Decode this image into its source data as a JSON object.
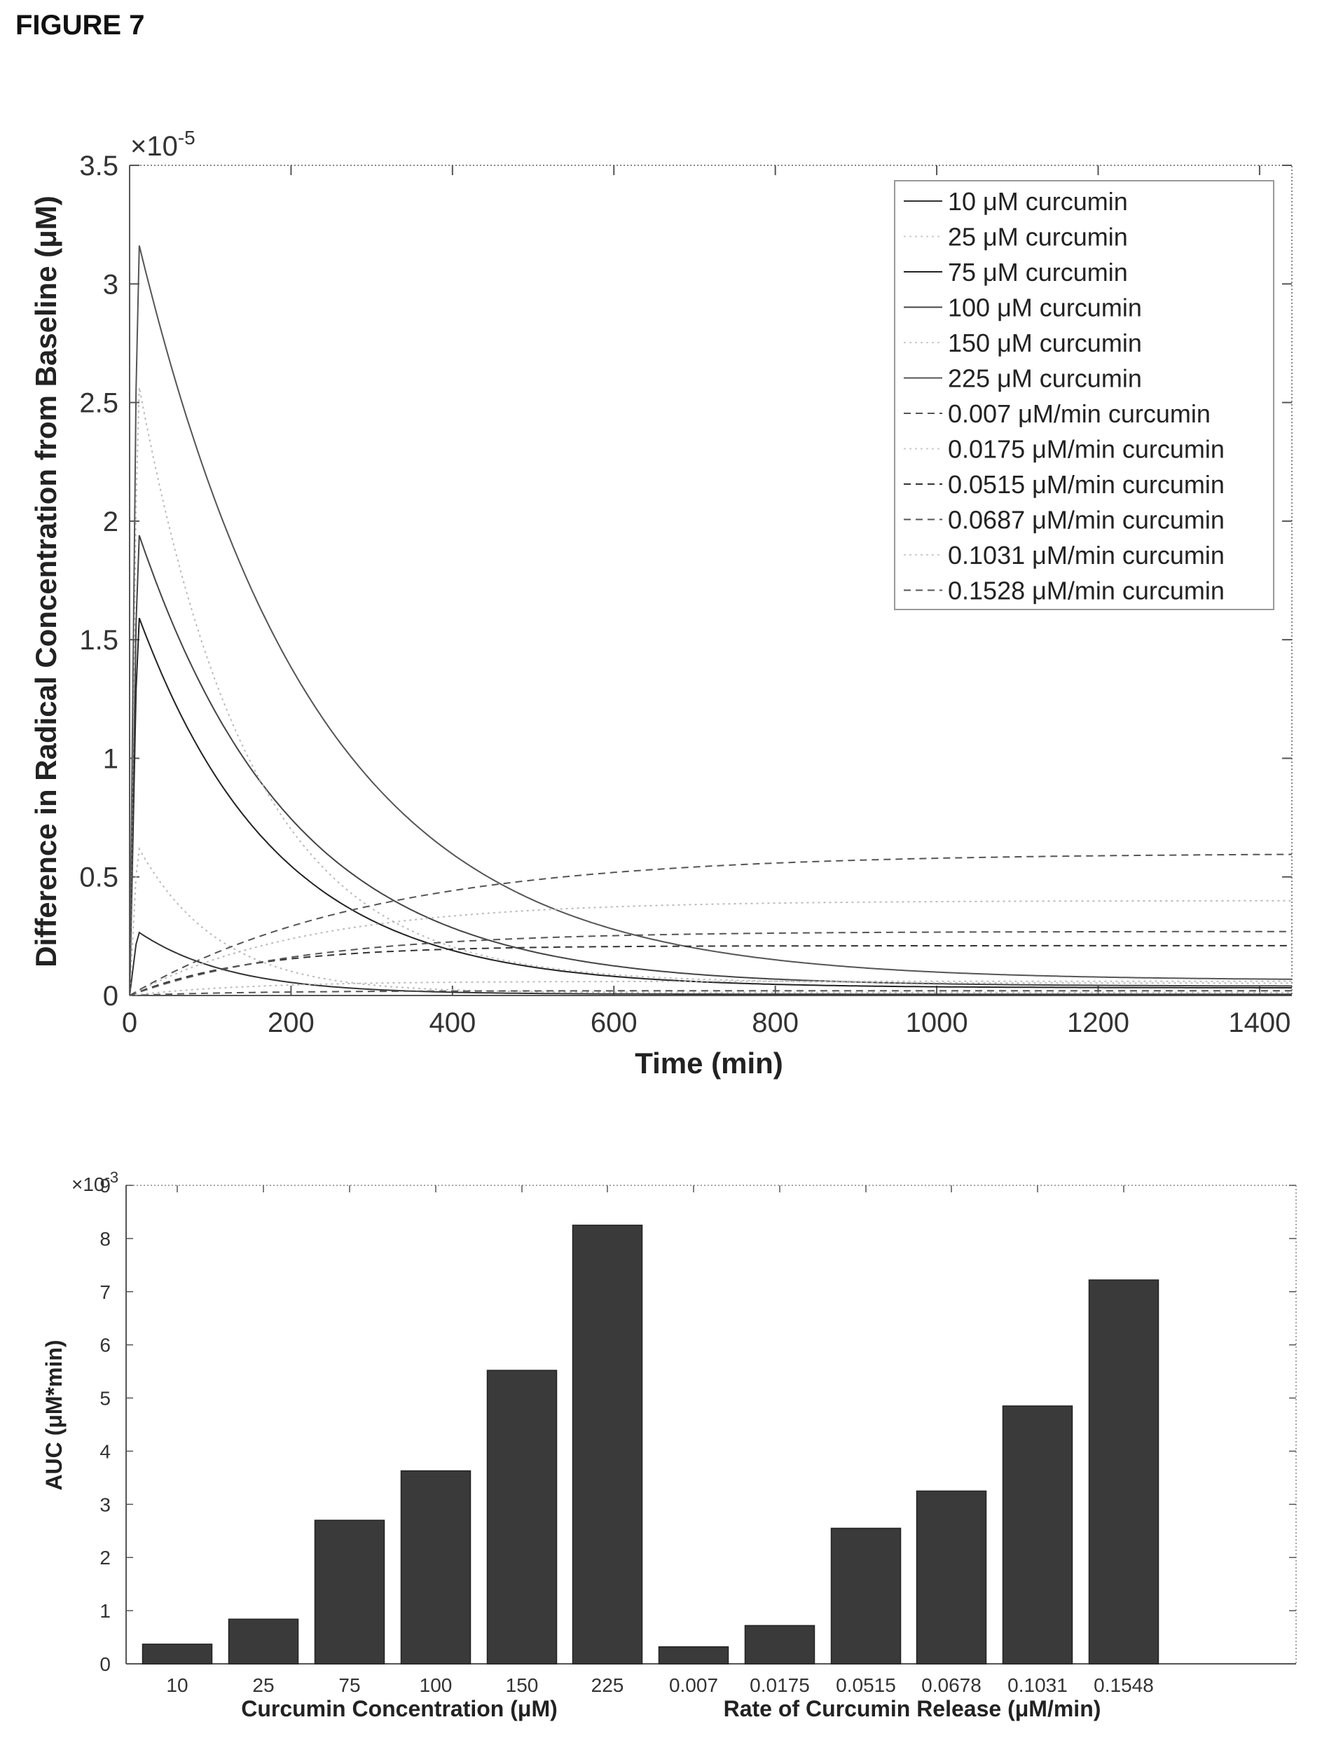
{
  "figure_title": "FIGURE 7",
  "chart_data": [
    {
      "type": "line",
      "xlabel": "Time (min)",
      "ylabel": "Difference in Radical Concentration from Baseline (μM)",
      "y_exponent": "×10",
      "y_exponent_power": "-5",
      "xlim": [
        0,
        1440
      ],
      "ylim": [
        0,
        3.5
      ],
      "x_ticks": [
        "0",
        "200",
        "400",
        "600",
        "800",
        "1000",
        "1200",
        "1400"
      ],
      "y_ticks": [
        "0",
        "0.5",
        "1",
        "1.5",
        "2",
        "2.5",
        "3",
        "3.5"
      ],
      "legend_position": "top-right",
      "grid": false,
      "series": [
        {
          "name": "10 μM curcumin",
          "style": "solid",
          "color": "#333333",
          "peak": 0.27,
          "tau": 115,
          "kind": "bolus"
        },
        {
          "name": "25 μM curcumin",
          "style": "dotted",
          "color": "#bbbbbb",
          "peak": 0.63,
          "tau": 100,
          "kind": "bolus"
        },
        {
          "name": "75 μM curcumin",
          "style": "solid",
          "color": "#222222",
          "peak": 1.61,
          "tau": 170,
          "kind": "bolus"
        },
        {
          "name": "100 μM curcumin",
          "style": "solid",
          "color": "#444444",
          "peak": 1.96,
          "tau": 190,
          "kind": "bolus"
        },
        {
          "name": "150 μM curcumin",
          "style": "dotted",
          "color": "#bbbbbb",
          "peak": 2.6,
          "tau": 140,
          "kind": "bolus"
        },
        {
          "name": "225 μM curcumin",
          "style": "solid",
          "color": "#555555",
          "peak": 3.19,
          "tau": 220,
          "kind": "bolus"
        },
        {
          "name": "0.007 μM/min curcumin",
          "style": "dashed",
          "color": "#555555",
          "plateau": 0.02,
          "tau": 150,
          "kind": "release"
        },
        {
          "name": "0.0175 μM/min curcumin",
          "style": "dotted",
          "color": "#bbbbbb",
          "plateau": 0.06,
          "tau": 150,
          "kind": "release"
        },
        {
          "name": "0.0515 μM/min curcumin",
          "style": "dashed",
          "color": "#333333",
          "plateau": 0.21,
          "tau": 150,
          "kind": "release"
        },
        {
          "name": "0.0687 μM/min curcumin",
          "style": "dashed",
          "color": "#555555",
          "plateau": 0.27,
          "tau": 220,
          "kind": "release"
        },
        {
          "name": "0.1031 μM/min curcumin",
          "style": "dotted",
          "color": "#bbbbbb",
          "plateau": 0.4,
          "tau": 220,
          "kind": "release"
        },
        {
          "name": "0.1528 μM/min curcumin",
          "style": "dashed",
          "color": "#555555",
          "plateau": 0.6,
          "tau": 300,
          "kind": "release"
        }
      ]
    },
    {
      "type": "bar",
      "ylabel": "AUC (μM*min)",
      "y_exponent": "×10",
      "y_exponent_power": "-3",
      "ylim": [
        0,
        9
      ],
      "y_ticks": [
        "0",
        "1",
        "2",
        "3",
        "4",
        "5",
        "6",
        "7",
        "8",
        "9"
      ],
      "grid": false,
      "group_labels": [
        "Curcumin Concentration (μM)",
        "Rate of Curcumin Release (μM/min)"
      ],
      "categories": [
        "10",
        "25",
        "75",
        "100",
        "150",
        "225",
        "0.007",
        "0.0175",
        "0.0515",
        "0.0678",
        "0.1031",
        "0.1548"
      ],
      "values": [
        0.37,
        0.84,
        2.7,
        3.63,
        5.52,
        8.25,
        0.32,
        0.72,
        2.55,
        3.25,
        4.85,
        7.22
      ],
      "bar_color": "#3a3a3a"
    }
  ]
}
